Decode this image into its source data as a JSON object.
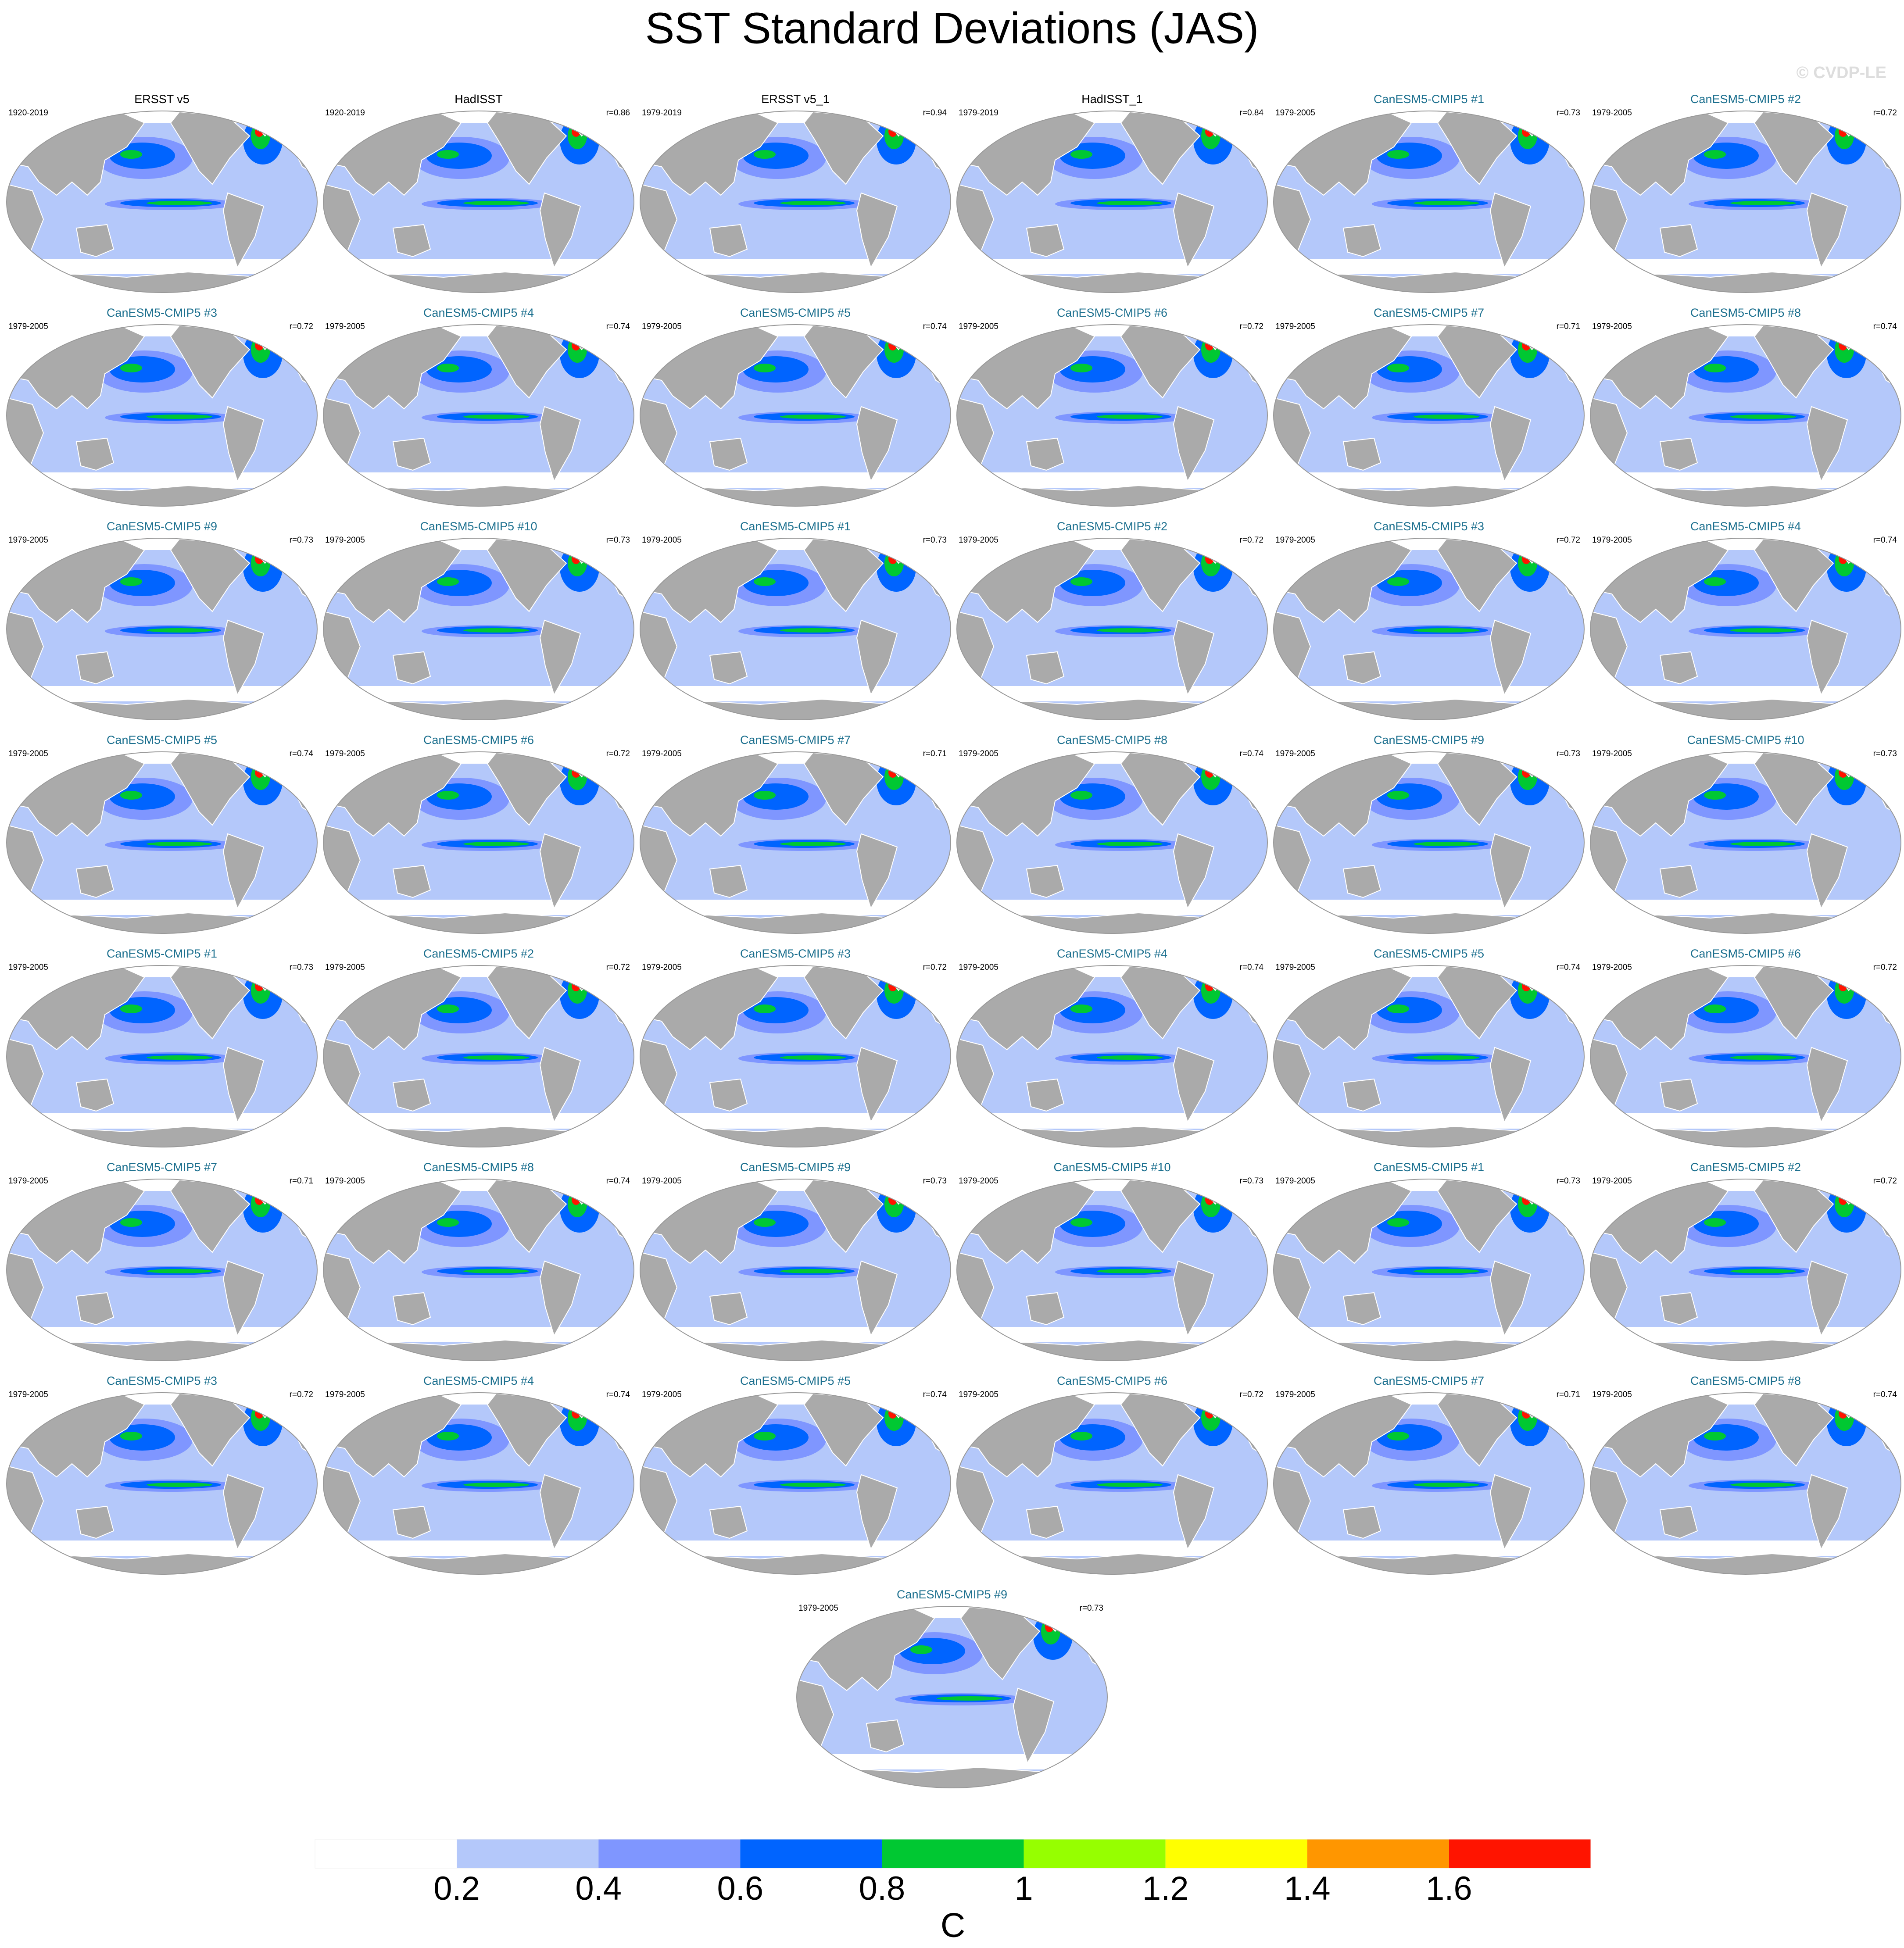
{
  "title": "SST Standard Deviations (JAS)",
  "watermark": "© CVDP-LE",
  "panels": [
    {
      "title": "ERSST v5",
      "period": "1920-2019",
      "color": "#000000"
    },
    {
      "title": "HadISST",
      "period": "1920-2019",
      "r": "r=0.86",
      "color": "#000000"
    },
    {
      "title": "ERSST v5_1",
      "period": "1979-2019",
      "r": "r=0.94",
      "color": "#000000"
    },
    {
      "title": "HadISST_1",
      "period": "1979-2019",
      "r": "r=0.84",
      "color": "#000000"
    },
    {
      "title": "CanESM5-CMIP5 #1",
      "period": "1979-2005",
      "r": "r=0.73",
      "color": "#1b6f8e"
    },
    {
      "title": "CanESM5-CMIP5 #2",
      "period": "1979-2005",
      "r": "r=0.72",
      "color": "#1b6f8e"
    },
    {
      "title": "CanESM5-CMIP5 #3",
      "period": "1979-2005",
      "r": "r=0.72",
      "color": "#1b6f8e"
    },
    {
      "title": "CanESM5-CMIP5 #4",
      "period": "1979-2005",
      "r": "r=0.74",
      "color": "#1b6f8e"
    },
    {
      "title": "CanESM5-CMIP5 #5",
      "period": "1979-2005",
      "r": "r=0.74",
      "color": "#1b6f8e"
    },
    {
      "title": "CanESM5-CMIP5 #6",
      "period": "1979-2005",
      "r": "r=0.72",
      "color": "#1b6f8e"
    },
    {
      "title": "CanESM5-CMIP5 #7",
      "period": "1979-2005",
      "r": "r=0.71",
      "color": "#1b6f8e"
    },
    {
      "title": "CanESM5-CMIP5 #8",
      "period": "1979-2005",
      "r": "r=0.74",
      "color": "#1b6f8e"
    },
    {
      "title": "CanESM5-CMIP5 #9",
      "period": "1979-2005",
      "r": "r=0.73",
      "color": "#1b6f8e"
    },
    {
      "title": "CanESM5-CMIP5 #10",
      "period": "1979-2005",
      "r": "r=0.73",
      "color": "#1b6f8e"
    },
    {
      "title": "CanESM5-CMIP5 #1",
      "period": "1979-2005",
      "r": "r=0.73",
      "color": "#1b6f8e"
    },
    {
      "title": "CanESM5-CMIP5 #2",
      "period": "1979-2005",
      "r": "r=0.72",
      "color": "#1b6f8e"
    },
    {
      "title": "CanESM5-CMIP5 #3",
      "period": "1979-2005",
      "r": "r=0.72",
      "color": "#1b6f8e"
    },
    {
      "title": "CanESM5-CMIP5 #4",
      "period": "1979-2005",
      "r": "r=0.74",
      "color": "#1b6f8e"
    },
    {
      "title": "CanESM5-CMIP5 #5",
      "period": "1979-2005",
      "r": "r=0.74",
      "color": "#1b6f8e"
    },
    {
      "title": "CanESM5-CMIP5 #6",
      "period": "1979-2005",
      "r": "r=0.72",
      "color": "#1b6f8e"
    },
    {
      "title": "CanESM5-CMIP5 #7",
      "period": "1979-2005",
      "r": "r=0.71",
      "color": "#1b6f8e"
    },
    {
      "title": "CanESM5-CMIP5 #8",
      "period": "1979-2005",
      "r": "r=0.74",
      "color": "#1b6f8e"
    },
    {
      "title": "CanESM5-CMIP5 #9",
      "period": "1979-2005",
      "r": "r=0.73",
      "color": "#1b6f8e"
    },
    {
      "title": "CanESM5-CMIP5 #10",
      "period": "1979-2005",
      "r": "r=0.73",
      "color": "#1b6f8e"
    },
    {
      "title": "CanESM5-CMIP5 #1",
      "period": "1979-2005",
      "r": "r=0.73",
      "color": "#1b6f8e"
    },
    {
      "title": "CanESM5-CMIP5 #2",
      "period": "1979-2005",
      "r": "r=0.72",
      "color": "#1b6f8e"
    },
    {
      "title": "CanESM5-CMIP5 #3",
      "period": "1979-2005",
      "r": "r=0.72",
      "color": "#1b6f8e"
    },
    {
      "title": "CanESM5-CMIP5 #4",
      "period": "1979-2005",
      "r": "r=0.74",
      "color": "#1b6f8e"
    },
    {
      "title": "CanESM5-CMIP5 #5",
      "period": "1979-2005",
      "r": "r=0.74",
      "color": "#1b6f8e"
    },
    {
      "title": "CanESM5-CMIP5 #6",
      "period": "1979-2005",
      "r": "r=0.72",
      "color": "#1b6f8e"
    },
    {
      "title": "CanESM5-CMIP5 #7",
      "period": "1979-2005",
      "r": "r=0.71",
      "color": "#1b6f8e"
    },
    {
      "title": "CanESM5-CMIP5 #8",
      "period": "1979-2005",
      "r": "r=0.74",
      "color": "#1b6f8e"
    },
    {
      "title": "CanESM5-CMIP5 #9",
      "period": "1979-2005",
      "r": "r=0.73",
      "color": "#1b6f8e"
    },
    {
      "title": "CanESM5-CMIP5 #10",
      "period": "1979-2005",
      "r": "r=0.73",
      "color": "#1b6f8e"
    },
    {
      "title": "CanESM5-CMIP5 #1",
      "period": "1979-2005",
      "r": "r=0.73",
      "color": "#1b6f8e"
    },
    {
      "title": "CanESM5-CMIP5 #2",
      "period": "1979-2005",
      "r": "r=0.72",
      "color": "#1b6f8e"
    },
    {
      "title": "CanESM5-CMIP5 #3",
      "period": "1979-2005",
      "r": "r=0.72",
      "color": "#1b6f8e"
    },
    {
      "title": "CanESM5-CMIP5 #4",
      "period": "1979-2005",
      "r": "r=0.74",
      "color": "#1b6f8e"
    },
    {
      "title": "CanESM5-CMIP5 #5",
      "period": "1979-2005",
      "r": "r=0.74",
      "color": "#1b6f8e"
    },
    {
      "title": "CanESM5-CMIP5 #6",
      "period": "1979-2005",
      "r": "r=0.72",
      "color": "#1b6f8e"
    },
    {
      "title": "CanESM5-CMIP5 #7",
      "period": "1979-2005",
      "r": "r=0.71",
      "color": "#1b6f8e"
    },
    {
      "title": "CanESM5-CMIP5 #8",
      "period": "1979-2005",
      "r": "r=0.74",
      "color": "#1b6f8e"
    },
    {
      "title": "CanESM5-CMIP5 #9",
      "period": "1979-2005",
      "r": "r=0.73",
      "color": "#1b6f8e"
    }
  ],
  "colorbar": {
    "label": "C",
    "range": [
      0,
      1.8
    ],
    "ticks": [
      0.2,
      0.4,
      0.6,
      0.8,
      1,
      1.2,
      1.4,
      1.6
    ],
    "colors": [
      "#ffffff",
      "#b4c8fa",
      "#7f96ff",
      "#0064ff",
      "#00c832",
      "#96ff00",
      "#ffff00",
      "#ff9600",
      "#ff1400"
    ]
  }
}
